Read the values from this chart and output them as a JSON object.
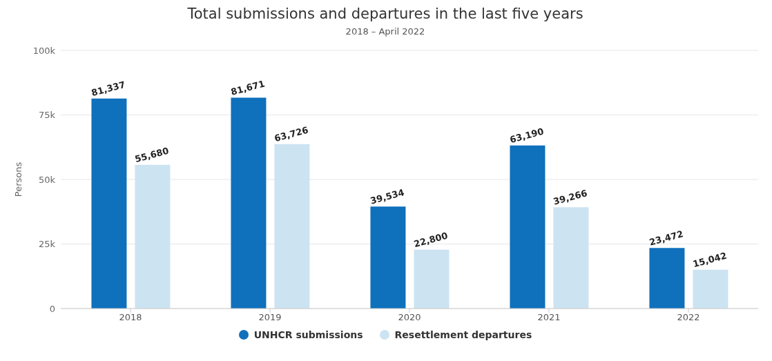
{
  "chart_data": {
    "type": "bar",
    "title": "Total submissions and departures in the last five years",
    "subtitle": "2018 – April 2022",
    "ylabel": "Persons",
    "categories": [
      "2018",
      "2019",
      "2020",
      "2021",
      "2022"
    ],
    "series": [
      {
        "name": "UNHCR submissions",
        "color": "#0f70bc",
        "values": [
          81337,
          81671,
          39534,
          63190,
          23472
        ],
        "value_labels": [
          "81,337",
          "81,671",
          "39,534",
          "63,190",
          "23,472"
        ]
      },
      {
        "name": "Resettlement departures",
        "color": "#cce3f2",
        "values": [
          55680,
          63726,
          22800,
          39266,
          15042
        ],
        "value_labels": [
          "55,680",
          "63,726",
          "22,800",
          "39,266",
          "15,042"
        ]
      }
    ],
    "ylim": [
      0,
      100000
    ],
    "yticks": [
      {
        "value": 0,
        "label": "0"
      },
      {
        "value": 25000,
        "label": "25k"
      },
      {
        "value": 50000,
        "label": "50k"
      },
      {
        "value": 75000,
        "label": "75k"
      },
      {
        "value": 100000,
        "label": "100k"
      }
    ],
    "grid": "y",
    "legend": "bottom"
  }
}
